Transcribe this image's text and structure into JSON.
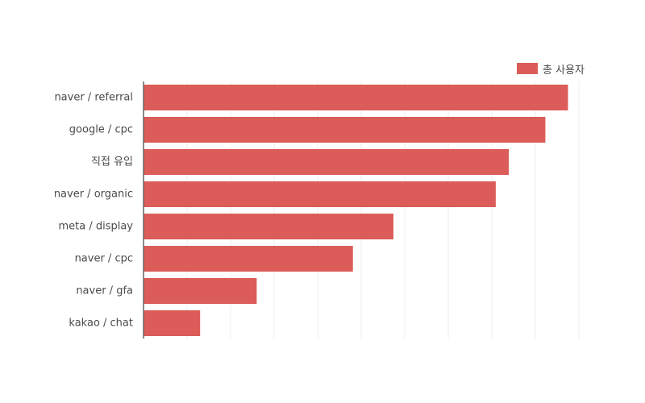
{
  "chart_data": {
    "type": "bar",
    "orientation": "horizontal",
    "categories": [
      "naver / referral",
      "google / cpc",
      "직접 유입",
      "naver / organic",
      "meta / display",
      "naver / cpc",
      "naver / gfa",
      "kakao / chat"
    ],
    "series": [
      {
        "name": "총 사용자",
        "values": [
          97.5,
          92.3,
          83.9,
          80.9,
          57.4,
          48.1,
          26.0,
          13.0
        ],
        "color": "#db5c58"
      }
    ],
    "xlim": [
      0,
      100
    ],
    "grid": true,
    "legend_position": "top-right",
    "axis_color": "#666666",
    "grid_color": "#eeeeee",
    "label_color": "#4a4a4a"
  }
}
